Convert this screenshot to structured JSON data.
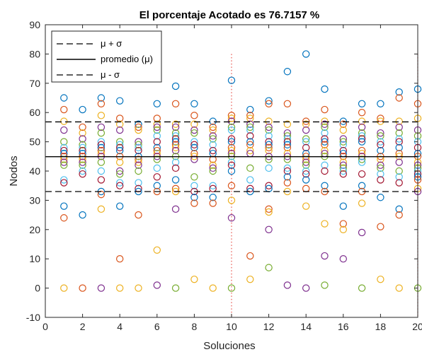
{
  "chart_data": {
    "type": "scatter",
    "title": "El porcentaje Acotado es 76.7157 %",
    "xlabel": "Soluciones",
    "ylabel": "Nodos",
    "xlim": [
      0,
      20
    ],
    "ylim": [
      -10,
      90
    ],
    "xticks": [
      "0",
      "2",
      "4",
      "6",
      "8",
      "10",
      "12",
      "14",
      "16",
      "18",
      "20"
    ],
    "yticks": [
      "-10",
      "0",
      "10",
      "20",
      "30",
      "40",
      "50",
      "60",
      "70",
      "80",
      "90"
    ],
    "grid": false,
    "legend_position": "top-left",
    "reference_lines": {
      "mean_plus_sigma": 56.8,
      "mean": 44.9,
      "mean_minus_sigma": 33.0
    },
    "legend": [
      {
        "label": "μ + σ",
        "style": "dashed"
      },
      {
        "label": "promedio (μ)",
        "style": "solid"
      },
      {
        "label": "μ - σ",
        "style": "dashed"
      }
    ],
    "highlight_x": [
      10,
      20
    ],
    "colors": [
      "#0072bd",
      "#d95319",
      "#edb120",
      "#7e2f8e",
      "#77ac30",
      "#4dbeee",
      "#a2142f"
    ],
    "columns": [
      {
        "x": 1,
        "y": [
          65,
          61,
          57,
          54,
          50,
          48,
          47,
          46,
          45,
          44,
          43,
          42,
          37,
          36,
          28,
          24,
          0
        ]
      },
      {
        "x": 2,
        "y": [
          61,
          55,
          53,
          51,
          49,
          48,
          47,
          46,
          45,
          44,
          43,
          42,
          40,
          39,
          25,
          0
        ]
      },
      {
        "x": 3,
        "y": [
          65,
          63,
          59,
          55,
          53,
          50,
          49,
          48,
          47,
          46,
          45,
          43,
          40,
          37,
          33,
          32,
          27,
          0
        ]
      },
      {
        "x": 4,
        "y": [
          64,
          58,
          56,
          54,
          50,
          49,
          48,
          47,
          45,
          43,
          40,
          39,
          36,
          35,
          28,
          10,
          0
        ]
      },
      {
        "x": 5,
        "y": [
          56,
          55,
          54,
          50,
          49,
          48,
          47,
          45,
          44,
          43,
          42,
          40,
          36,
          34,
          33,
          25,
          0
        ]
      },
      {
        "x": 6,
        "y": [
          63,
          58,
          56,
          55,
          54,
          52,
          50,
          48,
          47,
          46,
          45,
          44,
          41,
          38,
          35,
          33,
          13,
          1
        ]
      },
      {
        "x": 7,
        "y": [
          69,
          63,
          56,
          55,
          53,
          52,
          51,
          50,
          49,
          48,
          47,
          45,
          43,
          41,
          37,
          34,
          33,
          27,
          0
        ]
      },
      {
        "x": 8,
        "y": [
          63,
          59,
          56,
          54,
          53,
          50,
          49,
          48,
          46,
          45,
          44,
          38,
          35,
          33,
          31,
          29,
          3
        ]
      },
      {
        "x": 9,
        "y": [
          57,
          55,
          54,
          52,
          51,
          49,
          47,
          46,
          44,
          42,
          41,
          40,
          35,
          34,
          31,
          29,
          0
        ]
      },
      {
        "x": 10,
        "y": [
          71,
          59,
          58,
          57,
          55,
          54,
          51,
          50,
          48,
          47,
          46,
          45,
          43,
          42,
          40,
          35,
          30,
          24,
          0
        ]
      },
      {
        "x": 11,
        "y": [
          61,
          59,
          58,
          56,
          55,
          54,
          52,
          50,
          49,
          47,
          46,
          41,
          37,
          34,
          33,
          11,
          3
        ]
      },
      {
        "x": 12,
        "y": [
          64,
          63,
          57,
          55,
          54,
          52,
          50,
          49,
          48,
          47,
          45,
          44,
          41,
          35,
          34,
          27,
          26,
          20,
          7
        ]
      },
      {
        "x": 13,
        "y": [
          74,
          63,
          56,
          53,
          52,
          51,
          50,
          49,
          48,
          46,
          45,
          44,
          41,
          40,
          38,
          36,
          33,
          1
        ]
      },
      {
        "x": 14,
        "y": [
          80,
          57,
          56,
          54,
          51,
          50,
          48,
          46,
          45,
          44,
          43,
          42,
          40,
          39,
          37,
          34,
          28,
          0
        ]
      },
      {
        "x": 15,
        "y": [
          68,
          61,
          57,
          56,
          55,
          53,
          51,
          50,
          49,
          47,
          46,
          45,
          42,
          40,
          35,
          33,
          22,
          11,
          1
        ]
      },
      {
        "x": 16,
        "y": [
          57,
          56,
          54,
          51,
          50,
          49,
          47,
          46,
          45,
          43,
          42,
          41,
          40,
          39,
          28,
          22,
          20,
          10
        ]
      },
      {
        "x": 17,
        "y": [
          63,
          60,
          57,
          55,
          53,
          52,
          51,
          50,
          47,
          46,
          45,
          44,
          43,
          39,
          35,
          33,
          29,
          19,
          0
        ]
      },
      {
        "x": 18,
        "y": [
          63,
          58,
          57,
          53,
          52,
          50,
          49,
          47,
          45,
          44,
          42,
          41,
          39,
          37,
          31,
          21,
          3
        ]
      },
      {
        "x": 19,
        "y": [
          67,
          65,
          57,
          55,
          53,
          51,
          50,
          48,
          46,
          45,
          43,
          40,
          38,
          36,
          27,
          25,
          0
        ]
      },
      {
        "x": 20,
        "y": [
          68,
          63,
          58,
          54,
          52,
          50,
          48,
          46,
          45,
          43,
          42,
          41,
          40,
          39,
          38,
          37,
          34,
          33,
          0
        ]
      }
    ]
  }
}
